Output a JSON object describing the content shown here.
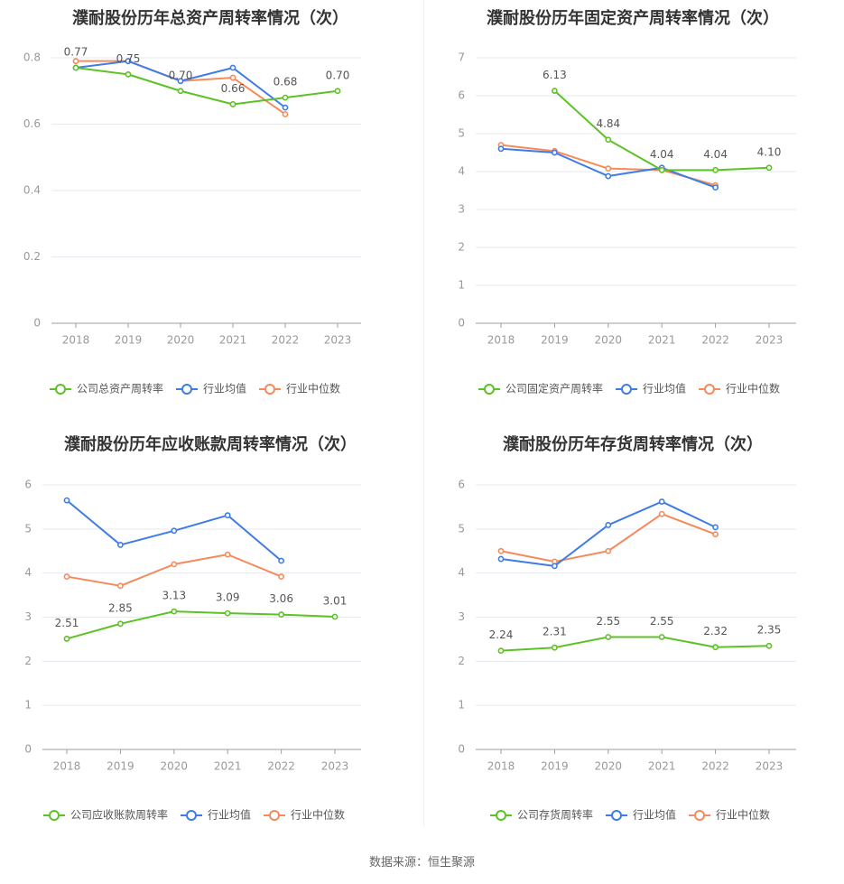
{
  "colors": {
    "company": "#5dc225",
    "industry_avg": "#3f7ce6",
    "industry_median": "#f58b5c",
    "grid": "#e6e9f0",
    "axis": "#9aa0a6"
  },
  "legend": {
    "avg": "行业均值",
    "median": "行业中位数"
  },
  "source": "数据来源：恒生聚源",
  "chart_data": [
    {
      "type": "line",
      "title": "濮耐股份历年总资产周转率情况（次）",
      "categories": [
        "2018",
        "2019",
        "2020",
        "2021",
        "2022",
        "2023"
      ],
      "ylim": [
        0,
        0.8
      ],
      "yticks": [
        "0",
        "0.2",
        "0.4",
        "0.6",
        "0.8"
      ],
      "series": [
        {
          "name": "公司总资产周转率",
          "key": "company",
          "values": [
            0.77,
            0.75,
            0.7,
            0.66,
            0.68,
            0.7
          ],
          "labels": [
            "0.77",
            "0.75",
            "0.70",
            "0.66",
            "0.68",
            "0.70"
          ]
        },
        {
          "name": "行业均值",
          "key": "industry_avg",
          "values": [
            0.77,
            0.79,
            0.73,
            0.77,
            0.65,
            null
          ]
        },
        {
          "name": "行业中位数",
          "key": "industry_median",
          "values": [
            0.79,
            0.79,
            0.73,
            0.74,
            0.63,
            null
          ]
        }
      ],
      "grid": true,
      "legend": "bottom"
    },
    {
      "type": "line",
      "title": "濮耐股份历年固定资产周转率情况（次）",
      "categories": [
        "2018",
        "2019",
        "2020",
        "2021",
        "2022",
        "2023"
      ],
      "ylim": [
        0,
        7
      ],
      "yticks": [
        "0",
        "1",
        "2",
        "3",
        "4",
        "5",
        "6",
        "7"
      ],
      "series": [
        {
          "name": "公司固定资产周转率",
          "key": "company",
          "values": [
            null,
            6.13,
            4.84,
            4.04,
            4.04,
            4.1
          ],
          "labels": [
            null,
            "6.13",
            "4.84",
            "4.04",
            "4.04",
            "4.10"
          ]
        },
        {
          "name": "行业均值",
          "key": "industry_avg",
          "values": [
            4.6,
            4.5,
            3.88,
            4.1,
            3.58,
            null
          ]
        },
        {
          "name": "行业中位数",
          "key": "industry_median",
          "values": [
            4.7,
            4.54,
            4.08,
            4.04,
            3.64,
            null
          ]
        }
      ],
      "grid": true,
      "legend": "bottom"
    },
    {
      "type": "line",
      "title": "濮耐股份历年应收账款周转率情况（次）",
      "categories": [
        "2018",
        "2019",
        "2020",
        "2021",
        "2022",
        "2023"
      ],
      "ylim": [
        0,
        6
      ],
      "yticks": [
        "0",
        "1",
        "2",
        "3",
        "4",
        "5",
        "6"
      ],
      "series": [
        {
          "name": "公司应收账款周转率",
          "key": "company",
          "values": [
            2.51,
            2.85,
            3.13,
            3.09,
            3.06,
            3.01
          ],
          "labels": [
            "2.51",
            "2.85",
            "3.13",
            "3.09",
            "3.06",
            "3.01"
          ]
        },
        {
          "name": "行业均值",
          "key": "industry_avg",
          "values": [
            5.65,
            4.64,
            4.96,
            5.31,
            4.28,
            null
          ]
        },
        {
          "name": "行业中位数",
          "key": "industry_median",
          "values": [
            3.92,
            3.71,
            4.2,
            4.42,
            3.92,
            null
          ]
        }
      ],
      "grid": true,
      "legend": "bottom"
    },
    {
      "type": "line",
      "title": "濮耐股份历年存货周转率情况（次）",
      "categories": [
        "2018",
        "2019",
        "2020",
        "2021",
        "2022",
        "2023"
      ],
      "ylim": [
        0,
        6
      ],
      "yticks": [
        "0",
        "1",
        "2",
        "3",
        "4",
        "5",
        "6"
      ],
      "series": [
        {
          "name": "公司存货周转率",
          "key": "company",
          "values": [
            2.24,
            2.31,
            2.55,
            2.55,
            2.32,
            2.35
          ],
          "labels": [
            "2.24",
            "2.31",
            "2.55",
            "2.55",
            "2.32",
            "2.35"
          ]
        },
        {
          "name": "行业均值",
          "key": "industry_avg",
          "values": [
            4.32,
            4.16,
            5.09,
            5.62,
            5.04,
            null
          ]
        },
        {
          "name": "行业中位数",
          "key": "industry_median",
          "values": [
            4.5,
            4.26,
            4.5,
            5.34,
            4.88,
            null
          ]
        }
      ],
      "grid": true,
      "legend": "bottom"
    }
  ]
}
